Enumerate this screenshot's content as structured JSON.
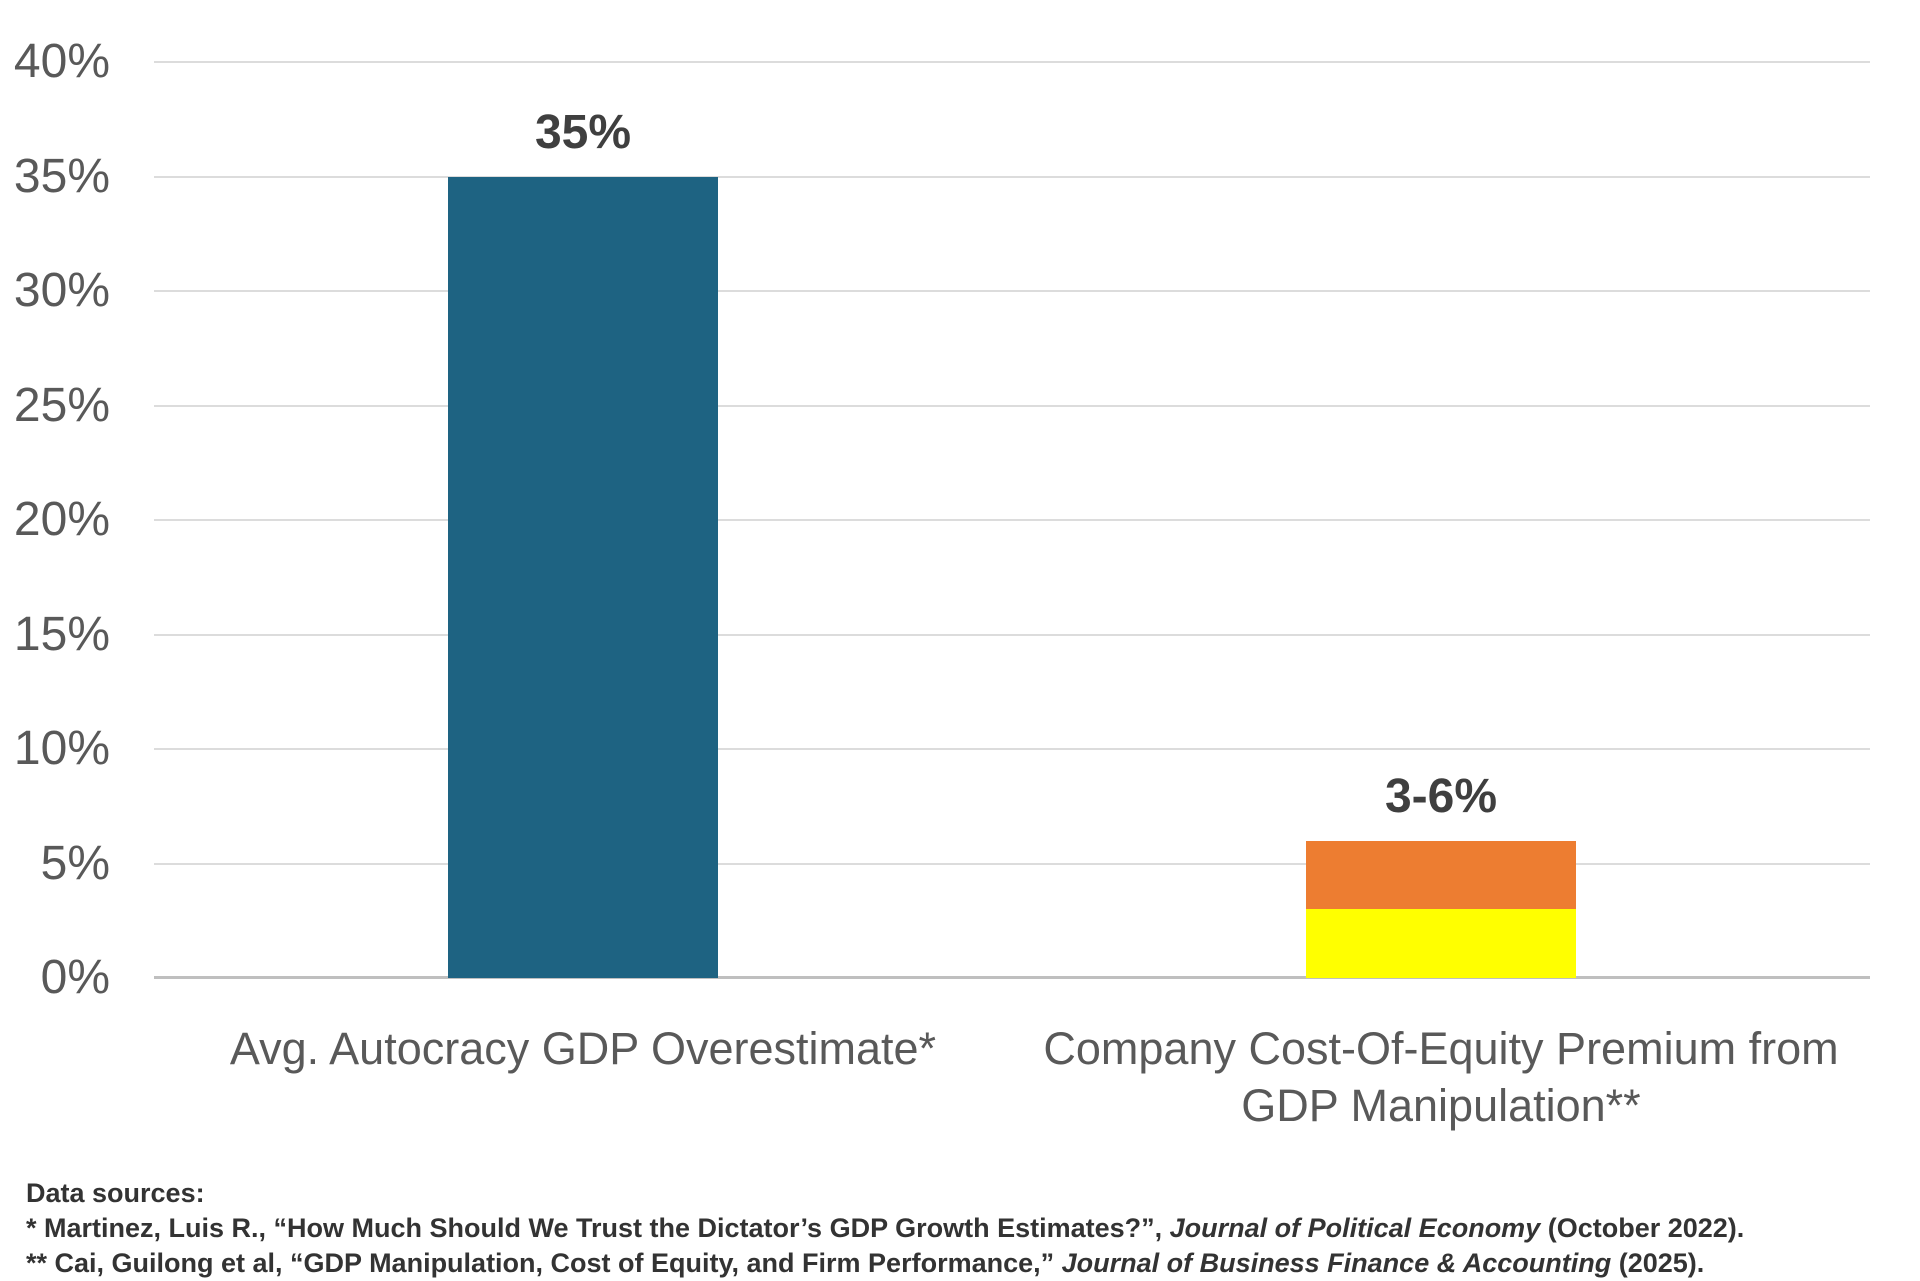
{
  "chart_data": {
    "type": "bar",
    "subtype": "stacked-column",
    "title": "",
    "xlabel": "",
    "ylabel": "",
    "ylim": [
      0,
      40
    ],
    "ytick_step": 5,
    "ytick_format": "percent",
    "yticks": [
      0,
      5,
      10,
      15,
      20,
      25,
      30,
      35,
      40
    ],
    "grid": true,
    "legend": "none",
    "categories": [
      "Avg. Autocracy GDP Overestimate*",
      "Company Cost-Of-Equity Premium from GDP Manipulation**"
    ],
    "bars": [
      {
        "category": "Avg. Autocracy GDP Overestimate*",
        "data_label": "35%",
        "segments": [
          {
            "name": "teal-segment",
            "from": 0,
            "to": 35,
            "color": "#1E6382"
          }
        ]
      },
      {
        "category": "Company Cost-Of-Equity Premium from GDP Manipulation**",
        "data_label": "3-6%",
        "segments": [
          {
            "name": "yellow-segment",
            "from": 0,
            "to": 3,
            "color": "#FFFF00"
          },
          {
            "name": "orange-segment",
            "from": 3,
            "to": 6,
            "color": "#ED7D31"
          }
        ]
      }
    ]
  },
  "colors": {
    "background": "#FFFFFF",
    "gridline": "#DCDCDC",
    "axis_line": "#BFBFBF",
    "axis_text": "#595959",
    "category_text": "#595959",
    "data_label_text": "#3F3F3F",
    "footnote_text": "#333333",
    "bar_teal": "#1E6382",
    "bar_orange": "#ED7D31",
    "bar_yellow": "#FFFF00"
  },
  "footnotes": {
    "heading": "Data sources:",
    "lines": [
      [
        {
          "text": "* Martinez, Luis R., “How Much Should We Trust the Dictator’s GDP Growth Estimates?”, "
        },
        {
          "text": "Journal of Political Economy",
          "italic": true
        },
        {
          "text": " (October 2022)."
        }
      ],
      [
        {
          "text": "** Cai, Guilong et al, “GDP Manipulation, Cost of Equity, and Firm Performance,” "
        },
        {
          "text": "Journal of Business Finance & Accounting",
          "italic": true
        },
        {
          "text": " (2025)."
        }
      ]
    ]
  }
}
